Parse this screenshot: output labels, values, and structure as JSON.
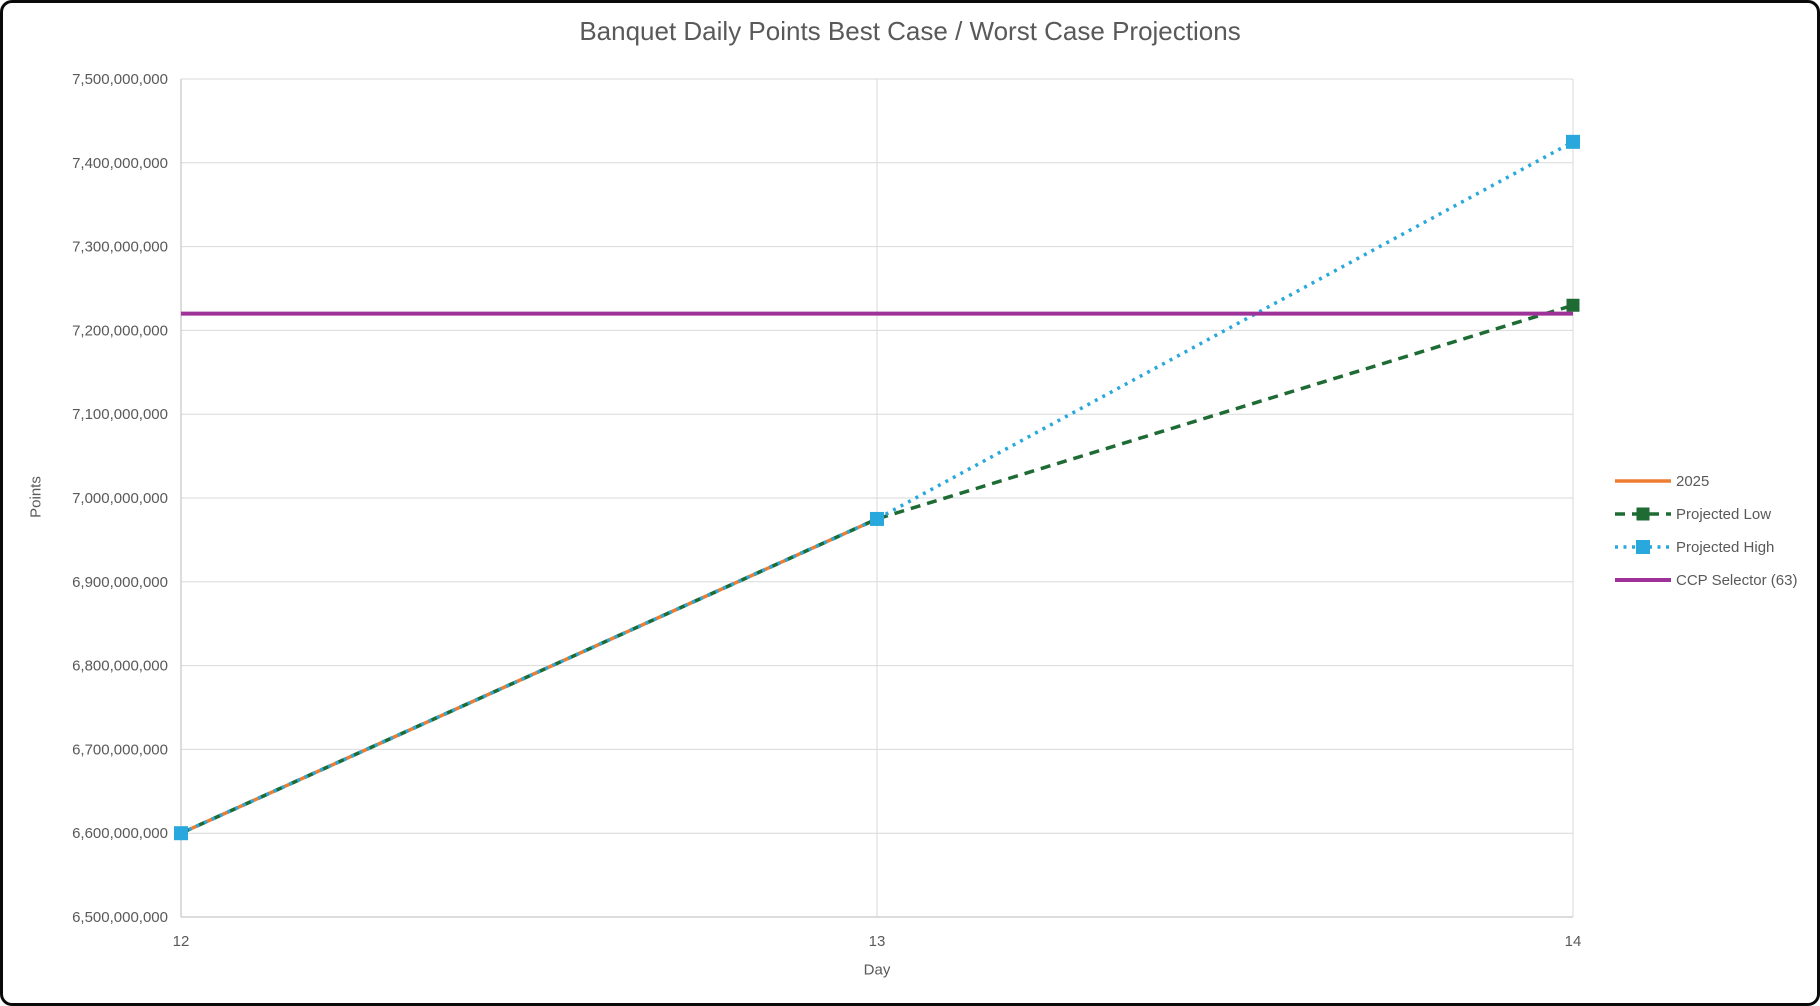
{
  "chart": {
    "title": "Banquet Daily Points Best Case / Worst Case Projections"
  },
  "chart_data": {
    "type": "line",
    "title": "Banquet Daily Points Best Case / Worst Case Projections",
    "xlabel": "Day",
    "ylabel": "Points",
    "grid": true,
    "legend_position": "right",
    "xlim": [
      12,
      14
    ],
    "ylim": [
      6500000000,
      7500000000
    ],
    "x_ticks": [
      12,
      13,
      14
    ],
    "x_tick_labels": [
      "12",
      "13",
      "14"
    ],
    "y_tick_values": [
      6500000000,
      6600000000,
      6700000000,
      6800000000,
      6900000000,
      7000000000,
      7100000000,
      7200000000,
      7300000000,
      7400000000,
      7500000000
    ],
    "y_tick_labels": [
      "6,500,000,000",
      "6,600,000,000",
      "6,700,000,000",
      "6,800,000,000",
      "6,900,000,000",
      "7,000,000,000",
      "7,100,000,000",
      "7,200,000,000",
      "7,300,000,000",
      "7,400,000,000",
      "7,500,000,000"
    ],
    "grid_color": "#D9D9D9",
    "axis_color": "#D0D0D0",
    "text_color": "#595959",
    "series": [
      {
        "name": "2025",
        "x": [
          12,
          13
        ],
        "values": [
          6600000000,
          6975000000
        ],
        "color": "#ED7D31",
        "line_style": "solid",
        "marker": "none",
        "stroke_width": 3.5
      },
      {
        "name": "Projected Low",
        "x": [
          12,
          13,
          14
        ],
        "values": [
          6600000000,
          6975000000,
          7230000000
        ],
        "color": "#1E6B34",
        "line_style": "dashed",
        "marker": "square",
        "marker_size": 13,
        "stroke_width": 3.5
      },
      {
        "name": "Projected High",
        "x": [
          12,
          13,
          14
        ],
        "values": [
          6600000000,
          6975000000,
          7425000000
        ],
        "color": "#29A8DD",
        "line_style": "dotted",
        "marker": "square",
        "marker_size": 14,
        "stroke_width": 3.5
      },
      {
        "name": "CCP Selector (63)",
        "x": [
          12,
          13,
          14
        ],
        "values": [
          7220000000,
          7220000000,
          7220000000
        ],
        "color": "#9E3298",
        "line_style": "solid",
        "marker": "none",
        "stroke_width": 4
      }
    ]
  }
}
